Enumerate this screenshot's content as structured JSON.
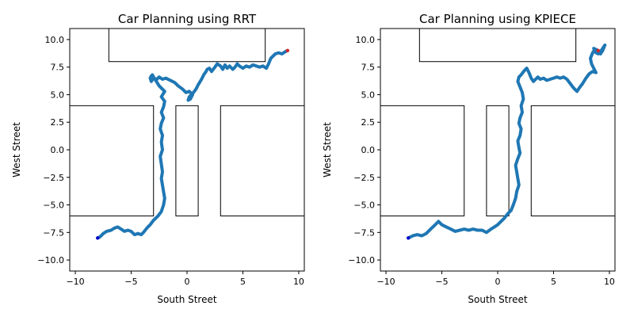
{
  "chart_data": [
    {
      "type": "line",
      "title": "Car Planning using RRT",
      "xlabel": "South Street",
      "ylabel": "West Street",
      "xlim": [
        -10.5,
        10.5
      ],
      "ylim": [
        -11,
        11
      ],
      "xticks": [
        -10,
        -5,
        0,
        5,
        10
      ],
      "yticks": [
        -10.0,
        -7.5,
        -5.0,
        -2.5,
        0.0,
        2.5,
        5.0,
        7.5,
        10.0
      ],
      "tick_labels_x": [
        "−10",
        "−5",
        "0",
        "5",
        "10"
      ],
      "tick_labels_y": [
        "−10.0",
        "−7.5",
        "−5.0",
        "−2.5",
        "0.0",
        "2.5",
        "5.0",
        "7.5",
        "10.0"
      ],
      "grid": false,
      "obstacles": [
        {
          "x0": -7,
          "x1": 7,
          "y0": 8,
          "y1": 11
        },
        {
          "x0": -10.5,
          "x1": -3,
          "y0": -6,
          "y1": 4
        },
        {
          "x0": -1,
          "x1": 1,
          "y0": -6,
          "y1": 4
        },
        {
          "x0": 3,
          "x1": 10.5,
          "y0": -6,
          "y1": 4
        }
      ],
      "start": {
        "x": -8,
        "y": -8
      },
      "goal": {
        "x": 9,
        "y": 9
      },
      "path": {
        "color": "#1f77b4",
        "x": [
          -8.0,
          -7.8,
          -7.5,
          -7.2,
          -6.8,
          -6.5,
          -6.2,
          -5.9,
          -5.6,
          -5.3,
          -5.0,
          -4.7,
          -4.4,
          -4.1,
          -3.9,
          -3.6,
          -3.3,
          -3.0,
          -2.6,
          -2.3,
          -2.1,
          -2.0,
          -2.1,
          -2.2,
          -2.3,
          -2.2,
          -2.3,
          -2.4,
          -2.2,
          -2.3,
          -2.2,
          -2.4,
          -2.3,
          -2.1,
          -2.3,
          -2.1,
          -2.0,
          -2.3,
          -2.0,
          -2.5,
          -2.8,
          -3.0,
          -3.1,
          -3.2,
          -3.3,
          -3.2,
          -3.0,
          -2.7,
          -2.5,
          -2.2,
          -1.9,
          -1.5,
          -1.1,
          -0.8,
          -0.4,
          -0.1,
          0.2,
          0.5,
          0.3,
          0.1,
          0.2,
          0.5,
          0.8,
          1.0,
          1.3,
          1.5,
          1.7,
          1.8,
          2.0,
          2.2,
          2.5,
          2.7,
          3.0,
          3.2,
          3.4,
          3.6,
          3.8,
          4.1,
          4.3,
          4.5,
          4.7,
          5.0,
          5.3,
          5.6,
          5.9,
          6.2,
          6.5,
          6.8,
          7.1,
          7.3,
          7.5,
          7.7,
          7.9,
          8.2,
          8.5,
          8.8,
          9.0
        ],
        "y": [
          -8.0,
          -7.9,
          -7.6,
          -7.4,
          -7.3,
          -7.1,
          -7.0,
          -7.2,
          -7.4,
          -7.3,
          -7.4,
          -7.7,
          -7.6,
          -7.7,
          -7.5,
          -7.1,
          -6.8,
          -6.4,
          -6.0,
          -5.6,
          -5.0,
          -4.4,
          -3.8,
          -3.2,
          -2.6,
          -2.0,
          -1.3,
          -0.6,
          0.0,
          0.7,
          1.3,
          1.9,
          2.4,
          2.9,
          3.4,
          3.9,
          4.4,
          4.8,
          5.3,
          5.8,
          6.3,
          6.6,
          6.8,
          6.7,
          6.5,
          6.2,
          6.5,
          6.4,
          6.6,
          6.4,
          6.5,
          6.3,
          6.1,
          5.8,
          5.5,
          5.2,
          5.3,
          5.0,
          4.6,
          4.5,
          4.8,
          5.1,
          5.5,
          5.9,
          6.4,
          6.8,
          7.1,
          7.3,
          7.4,
          7.1,
          7.5,
          7.8,
          7.6,
          7.3,
          7.7,
          7.4,
          7.6,
          7.3,
          7.5,
          7.8,
          7.6,
          7.4,
          7.6,
          7.5,
          7.7,
          7.6,
          7.5,
          7.6,
          7.4,
          7.8,
          8.3,
          8.5,
          8.7,
          8.8,
          8.7,
          8.9,
          9.0
        ]
      }
    },
    {
      "type": "line",
      "title": "Car Planning using KPIECE",
      "xlabel": "South Street",
      "ylabel": "West Street",
      "xlim": [
        -10.5,
        10.5
      ],
      "ylim": [
        -11,
        11
      ],
      "xticks": [
        -10,
        -5,
        0,
        5,
        10
      ],
      "yticks": [
        -10.0,
        -7.5,
        -5.0,
        -2.5,
        0.0,
        2.5,
        5.0,
        7.5,
        10.0
      ],
      "tick_labels_x": [
        "−10",
        "−5",
        "0",
        "5",
        "10"
      ],
      "tick_labels_y": [
        "−10.0",
        "−7.5",
        "−5.0",
        "−2.5",
        "0.0",
        "2.5",
        "5.0",
        "7.5",
        "10.0"
      ],
      "grid": false,
      "obstacles": [
        {
          "x0": -7,
          "x1": 7,
          "y0": 8,
          "y1": 11
        },
        {
          "x0": -10.5,
          "x1": -3,
          "y0": -6,
          "y1": 4
        },
        {
          "x0": -1,
          "x1": 1,
          "y0": -6,
          "y1": 4
        },
        {
          "x0": 3,
          "x1": 10.5,
          "y0": -6,
          "y1": 4
        }
      ],
      "start": {
        "x": -8,
        "y": -8
      },
      "goal": {
        "x": 9,
        "y": 9
      },
      "path": {
        "color": "#1f77b4",
        "x": [
          -8.0,
          -7.6,
          -7.2,
          -6.8,
          -6.4,
          -6.0,
          -5.7,
          -5.3,
          -5.0,
          -4.6,
          -4.2,
          -3.8,
          -3.4,
          -3.0,
          -2.6,
          -2.2,
          -1.8,
          -1.4,
          -1.0,
          -0.6,
          -0.3,
          0.0,
          0.3,
          0.6,
          0.9,
          1.2,
          1.4,
          1.6,
          1.7,
          1.9,
          1.8,
          1.7,
          1.6,
          1.8,
          2.0,
          1.9,
          1.8,
          2.0,
          2.1,
          1.9,
          2.0,
          2.2,
          2.1,
          2.3,
          2.2,
          2.0,
          1.8,
          1.9,
          2.1,
          2.4,
          2.6,
          2.8,
          3.0,
          3.2,
          3.4,
          3.6,
          3.8,
          4.1,
          4.4,
          4.7,
          5.0,
          5.3,
          5.6,
          5.9,
          6.2,
          6.5,
          6.8,
          7.1,
          7.3,
          7.6,
          7.9,
          8.2,
          8.5,
          8.8,
          8.6,
          8.4,
          8.3,
          8.5,
          8.7,
          8.9,
          9.2,
          9.4,
          9.6,
          9.4,
          9.2,
          9.0,
          8.8,
          8.7,
          8.6,
          8.8,
          9.0
        ],
        "y": [
          -8.0,
          -7.8,
          -7.7,
          -7.8,
          -7.6,
          -7.2,
          -6.9,
          -6.5,
          -6.8,
          -7.0,
          -7.2,
          -7.4,
          -7.3,
          -7.2,
          -7.3,
          -7.2,
          -7.3,
          -7.3,
          -7.5,
          -7.2,
          -7.0,
          -6.8,
          -6.5,
          -6.2,
          -5.8,
          -5.5,
          -5.0,
          -4.4,
          -3.8,
          -3.2,
          -2.6,
          -2.0,
          -1.4,
          -0.8,
          -0.3,
          0.2,
          0.8,
          1.3,
          1.9,
          2.4,
          2.9,
          3.4,
          4.0,
          4.6,
          5.2,
          5.7,
          6.2,
          6.6,
          6.8,
          7.2,
          7.4,
          7.0,
          6.5,
          6.2,
          6.4,
          6.6,
          6.4,
          6.5,
          6.3,
          6.4,
          6.5,
          6.6,
          6.5,
          6.6,
          6.4,
          6.0,
          5.6,
          5.3,
          5.6,
          6.0,
          6.5,
          6.9,
          7.1,
          7.0,
          7.4,
          7.8,
          8.3,
          8.8,
          9.1,
          8.9,
          8.7,
          9.0,
          9.5,
          9.2,
          8.9,
          8.7,
          8.8,
          9.0,
          9.2,
          9.1,
          9.0
        ]
      }
    }
  ]
}
